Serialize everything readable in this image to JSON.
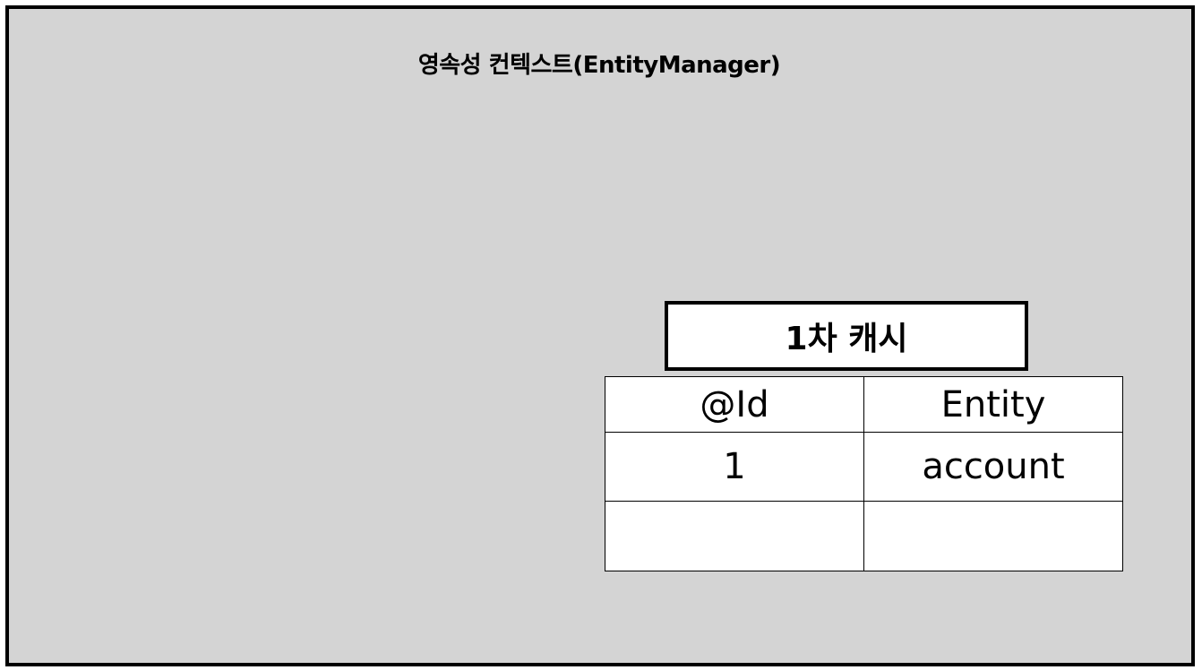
{
  "context": {
    "title": "영속성 컨텍스트(EntityManager)"
  },
  "cache": {
    "label": "1차 캐시",
    "columns": [
      "@Id",
      "Entity"
    ],
    "rows": [
      [
        "1",
        "account"
      ],
      [
        "",
        ""
      ]
    ]
  },
  "colors": {
    "context_fill": "#d4d4d4",
    "border": "#000000",
    "cell_fill": "#ffffff"
  }
}
